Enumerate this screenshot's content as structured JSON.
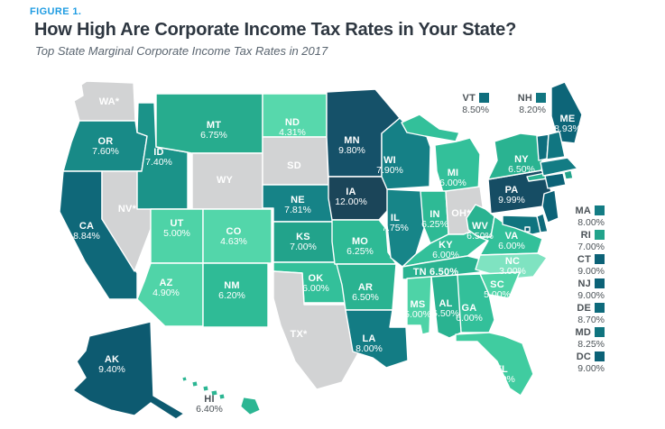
{
  "figure": {
    "eyebrow": "FIGURE 1.",
    "title": "How High Are Corporate Income Tax Rates in Your State?",
    "subtitle": "Top State Marginal Corporate Income Tax Rates in 2017"
  },
  "colors": {
    "figure_number_blue": "#1f9ce2",
    "title_text": "#2e3741",
    "subtitle_text": "#5a6570",
    "state_border": "#ffffff",
    "no_rate_gray": "#d2d3d4",
    "scale_low_green": "#7fe3c1",
    "scale_high_navy": "#1b4559",
    "map_label_white": "#ffffff",
    "callout_text": "#4b5257"
  },
  "map": {
    "states": [
      {
        "abbr": "AK",
        "label": "AK",
        "rate": "9.40%",
        "value": 9.4,
        "color": "#0d5a70"
      },
      {
        "abbr": "AL",
        "label": "AL",
        "rate": "6.50%",
        "value": 6.5,
        "color": "#2ab391"
      },
      {
        "abbr": "AR",
        "label": "AR",
        "rate": "6.50%",
        "value": 6.5,
        "color": "#2ab391"
      },
      {
        "abbr": "AZ",
        "label": "AZ",
        "rate": "4.90%",
        "value": 4.9,
        "color": "#50d4a8"
      },
      {
        "abbr": "CA",
        "label": "CA",
        "rate": "8.84%",
        "value": 8.84,
        "color": "#0f6879"
      },
      {
        "abbr": "CO",
        "label": "CO",
        "rate": "4.63%",
        "value": 4.63,
        "color": "#53d6aa"
      },
      {
        "abbr": "CT",
        "label": "CT",
        "rate": "9.00%",
        "value": 9.0,
        "color": "#0c6277"
      },
      {
        "abbr": "DC",
        "label": "DC",
        "rate": "9.00%",
        "value": 9.0,
        "color": "#0c6277"
      },
      {
        "abbr": "DE",
        "label": "DE",
        "rate": "8.70%",
        "value": 8.7,
        "color": "#0e6a7b"
      },
      {
        "abbr": "FL",
        "label": "FL",
        "rate": "5.50%",
        "value": 5.5,
        "color": "#40cca0"
      },
      {
        "abbr": "GA",
        "label": "GA",
        "rate": "6.00%",
        "value": 6.0,
        "color": "#33c09a"
      },
      {
        "abbr": "HI",
        "label": "HI",
        "rate": "6.40%",
        "value": 6.4,
        "color": "#2cb693"
      },
      {
        "abbr": "IA",
        "label": "IA",
        "rate": "12.00%",
        "value": 12.0,
        "color": "#1b4559"
      },
      {
        "abbr": "ID",
        "label": "ID",
        "rate": "7.40%",
        "value": 7.4,
        "color": "#1b9389"
      },
      {
        "abbr": "IL",
        "label": "IL",
        "rate": "7.75%",
        "value": 7.75,
        "color": "#178588"
      },
      {
        "abbr": "IN",
        "label": "IN",
        "rate": "6.25%",
        "value": 6.25,
        "color": "#2eba95"
      },
      {
        "abbr": "KS",
        "label": "KS",
        "rate": "7.00%",
        "value": 7.0,
        "color": "#22a38b"
      },
      {
        "abbr": "KY",
        "label": "KY",
        "rate": "6.00%",
        "value": 6.0,
        "color": "#33c09a"
      },
      {
        "abbr": "LA",
        "label": "LA",
        "rate": "8.00%",
        "value": 8.0,
        "color": "#137c84"
      },
      {
        "abbr": "MA",
        "label": "MA",
        "rate": "8.00%",
        "value": 8.0,
        "color": "#137c84"
      },
      {
        "abbr": "MD",
        "label": "MD",
        "rate": "8.25%",
        "value": 8.25,
        "color": "#10747f"
      },
      {
        "abbr": "ME",
        "label": "ME",
        "rate": "8.93%",
        "value": 8.93,
        "color": "#0d6578"
      },
      {
        "abbr": "MI",
        "label": "MI",
        "rate": "6.00%",
        "value": 6.0,
        "color": "#33c09a"
      },
      {
        "abbr": "MN",
        "label": "MN",
        "rate": "9.80%",
        "value": 9.8,
        "color": "#155169"
      },
      {
        "abbr": "MO",
        "label": "MO",
        "rate": "6.25%",
        "value": 6.25,
        "color": "#2eba95"
      },
      {
        "abbr": "MS",
        "label": "MS",
        "rate": "5.00%",
        "value": 5.0,
        "color": "#4ed3a7"
      },
      {
        "abbr": "MT",
        "label": "MT",
        "rate": "6.75%",
        "value": 6.75,
        "color": "#27ac8e"
      },
      {
        "abbr": "NC",
        "label": "NC",
        "rate": "3.00%",
        "value": 3.0,
        "color": "#7fe3c1"
      },
      {
        "abbr": "ND",
        "label": "ND",
        "rate": "4.31%",
        "value": 4.31,
        "color": "#57d8ac"
      },
      {
        "abbr": "NE",
        "label": "NE",
        "rate": "7.81%",
        "value": 7.81,
        "color": "#168387"
      },
      {
        "abbr": "NH",
        "label": "NH",
        "rate": "8.20%",
        "value": 8.2,
        "color": "#117681"
      },
      {
        "abbr": "NJ",
        "label": "NJ",
        "rate": "9.00%",
        "value": 9.0,
        "color": "#0c6277"
      },
      {
        "abbr": "NM",
        "label": "NM",
        "rate": "6.20%",
        "value": 6.2,
        "color": "#2fbb96"
      },
      {
        "abbr": "NV",
        "label": "NV*",
        "rate": null,
        "value": null,
        "color": "#d2d3d4"
      },
      {
        "abbr": "NY",
        "label": "NY",
        "rate": "6.50%",
        "value": 6.5,
        "color": "#2ab391"
      },
      {
        "abbr": "OH",
        "label": "OH*",
        "rate": null,
        "value": null,
        "color": "#d2d3d4"
      },
      {
        "abbr": "OK",
        "label": "OK",
        "rate": "6.00%",
        "value": 6.0,
        "color": "#33c09a"
      },
      {
        "abbr": "OR",
        "label": "OR",
        "rate": "7.60%",
        "value": 7.6,
        "color": "#188a87"
      },
      {
        "abbr": "PA",
        "label": "PA",
        "rate": "9.99%",
        "value": 9.99,
        "color": "#164d64"
      },
      {
        "abbr": "RI",
        "label": "RI",
        "rate": "7.00%",
        "value": 7.0,
        "color": "#22a38b"
      },
      {
        "abbr": "SC",
        "label": "SC",
        "rate": "5.00%",
        "value": 5.0,
        "color": "#4ed3a7"
      },
      {
        "abbr": "SD",
        "label": "SD",
        "rate": null,
        "value": null,
        "color": "#d2d3d4"
      },
      {
        "abbr": "TN",
        "label": "TN",
        "rate": "6.50%",
        "value": 6.5,
        "color": "#2ab391"
      },
      {
        "abbr": "TX",
        "label": "TX*",
        "rate": null,
        "value": null,
        "color": "#d2d3d4"
      },
      {
        "abbr": "UT",
        "label": "UT",
        "rate": "5.00%",
        "value": 5.0,
        "color": "#4ed3a7"
      },
      {
        "abbr": "VA",
        "label": "VA",
        "rate": "6.00%",
        "value": 6.0,
        "color": "#33c09a"
      },
      {
        "abbr": "VT",
        "label": "VT",
        "rate": "8.50%",
        "value": 8.5,
        "color": "#0f6e7d"
      },
      {
        "abbr": "WA",
        "label": "WA*",
        "rate": null,
        "value": null,
        "color": "#d2d3d4"
      },
      {
        "abbr": "WI",
        "label": "WI",
        "rate": "7.90%",
        "value": 7.9,
        "color": "#158086"
      },
      {
        "abbr": "WV",
        "label": "WV",
        "rate": "6.50%",
        "value": 6.5,
        "color": "#2ab391"
      },
      {
        "abbr": "WY",
        "label": "WY",
        "rate": null,
        "value": null,
        "color": "#d2d3d4"
      }
    ]
  },
  "chart_data": {
    "type": "heatmap",
    "subtype": "us-state-choropleth",
    "title": "How High Are Corporate Income Tax Rates in Your State?",
    "subtitle": "Top State Marginal Corporate Income Tax Rates in 2017",
    "unit": "percent",
    "value_range": [
      3.0,
      12.0
    ],
    "gray_states_no_rate_shown": [
      "WA*",
      "NV*",
      "WY",
      "SD",
      "TX*",
      "OH*"
    ],
    "callout_top": [
      "VT",
      "NH"
    ],
    "callout_right_column": [
      "MA",
      "RI",
      "CT",
      "NJ",
      "DE",
      "MD",
      "DC"
    ],
    "categories": [
      "AK",
      "AL",
      "AR",
      "AZ",
      "CA",
      "CO",
      "CT",
      "DC",
      "DE",
      "FL",
      "GA",
      "HI",
      "IA",
      "ID",
      "IL",
      "IN",
      "KS",
      "KY",
      "LA",
      "MA",
      "MD",
      "ME",
      "MI",
      "MN",
      "MO",
      "MS",
      "MT",
      "NC",
      "ND",
      "NE",
      "NH",
      "NJ",
      "NM",
      "NV",
      "NY",
      "OH",
      "OK",
      "OR",
      "PA",
      "RI",
      "SC",
      "SD",
      "TN",
      "TX",
      "UT",
      "VA",
      "VT",
      "WA",
      "WI",
      "WV",
      "WY"
    ],
    "values": [
      9.4,
      6.5,
      6.5,
      4.9,
      8.84,
      4.63,
      9.0,
      9.0,
      8.7,
      5.5,
      6.0,
      6.4,
      12.0,
      7.4,
      7.75,
      6.25,
      7.0,
      6.0,
      8.0,
      8.0,
      8.25,
      8.93,
      6.0,
      9.8,
      6.25,
      5.0,
      6.75,
      3.0,
      4.31,
      7.81,
      8.2,
      9.0,
      6.2,
      null,
      6.5,
      null,
      6.0,
      7.6,
      9.99,
      7.0,
      5.0,
      null,
      6.5,
      null,
      5.0,
      6.0,
      8.5,
      null,
      7.9,
      6.5,
      null
    ]
  }
}
